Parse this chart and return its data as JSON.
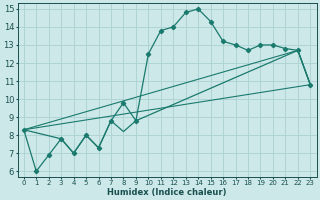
{
  "xlabel": "Humidex (Indice chaleur)",
  "xlim": [
    -0.5,
    23.5
  ],
  "ylim": [
    5.7,
    15.3
  ],
  "yticks": [
    6,
    7,
    8,
    9,
    10,
    11,
    12,
    13,
    14,
    15
  ],
  "xticks": [
    0,
    1,
    2,
    3,
    4,
    5,
    6,
    7,
    8,
    9,
    10,
    11,
    12,
    13,
    14,
    15,
    16,
    17,
    18,
    19,
    20,
    21,
    22,
    23
  ],
  "bg_color": "#cde8e8",
  "line_color": "#1a7a6e",
  "grid_color": "#b0d4d4",
  "line1_x": [
    0,
    1,
    2,
    3,
    4,
    5,
    6,
    7,
    8,
    9,
    10,
    11,
    12,
    13,
    14,
    15,
    16,
    17,
    18,
    19,
    20,
    21,
    22,
    23
  ],
  "line1_y": [
    8.3,
    6.0,
    6.9,
    7.8,
    7.0,
    8.0,
    7.3,
    8.8,
    9.8,
    8.8,
    12.5,
    13.8,
    14.0,
    14.8,
    15.0,
    14.3,
    13.2,
    13.0,
    12.7,
    13.0,
    13.0,
    12.8,
    12.7,
    10.8
  ],
  "line2_x": [
    0,
    3,
    4,
    5,
    6,
    7,
    8,
    9,
    22,
    23
  ],
  "line2_y": [
    8.3,
    7.8,
    7.0,
    8.0,
    7.3,
    8.8,
    8.2,
    8.8,
    12.7,
    10.8
  ],
  "line3_x": [
    0,
    23
  ],
  "line3_y": [
    8.3,
    10.8
  ],
  "line4_x": [
    0,
    22,
    23
  ],
  "line4_y": [
    8.3,
    12.7,
    10.8
  ]
}
